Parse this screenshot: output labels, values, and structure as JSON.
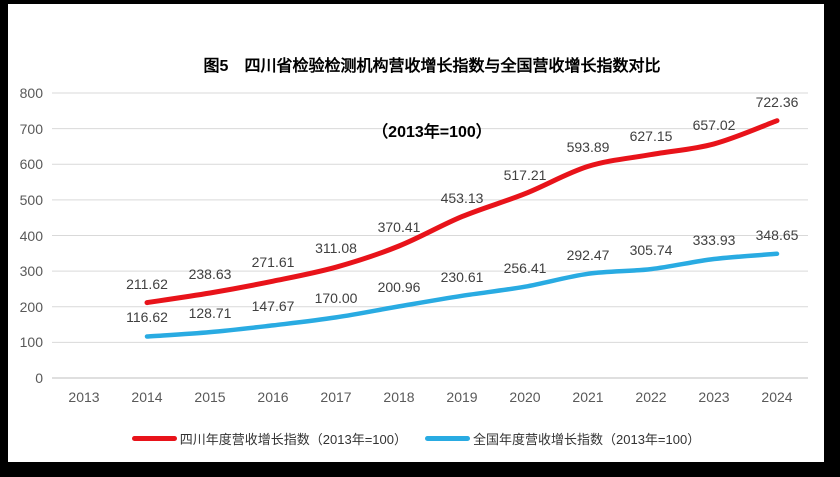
{
  "title": {
    "line1": "图5　四川省检验检测机构营收增长指数与全国营收增长指数对比",
    "line2": "（2013年=100）"
  },
  "chart_data": {
    "type": "line",
    "categories": [
      "2013",
      "2014",
      "2015",
      "2016",
      "2017",
      "2018",
      "2019",
      "2020",
      "2021",
      "2022",
      "2023",
      "2024"
    ],
    "series": [
      {
        "name": "四川年度营收增长指数（2013年=100）",
        "color": "#e8131a",
        "values": [
          null,
          211.62,
          238.63,
          271.61,
          311.08,
          370.41,
          453.13,
          517.21,
          593.89,
          627.15,
          657.02,
          722.36
        ]
      },
      {
        "name": "全国年度营收增长指数（2013年=100）",
        "color": "#29abe2",
        "values": [
          null,
          116.62,
          128.71,
          147.67,
          170.0,
          200.96,
          230.61,
          256.41,
          292.47,
          305.74,
          333.93,
          348.65
        ]
      }
    ],
    "xlabel": "",
    "ylabel": "",
    "ylim": [
      0,
      800
    ],
    "ytick_step": 100,
    "yticks": [
      0,
      100,
      200,
      300,
      400,
      500,
      600,
      700,
      800
    ],
    "grid": true,
    "legend_position": "bottom",
    "data_label_decimals": 2,
    "grid_color": "#d9d9d9",
    "axis_color": "#bfbfbf",
    "tick_text_color": "#595959",
    "data_label_color": "#404040"
  }
}
